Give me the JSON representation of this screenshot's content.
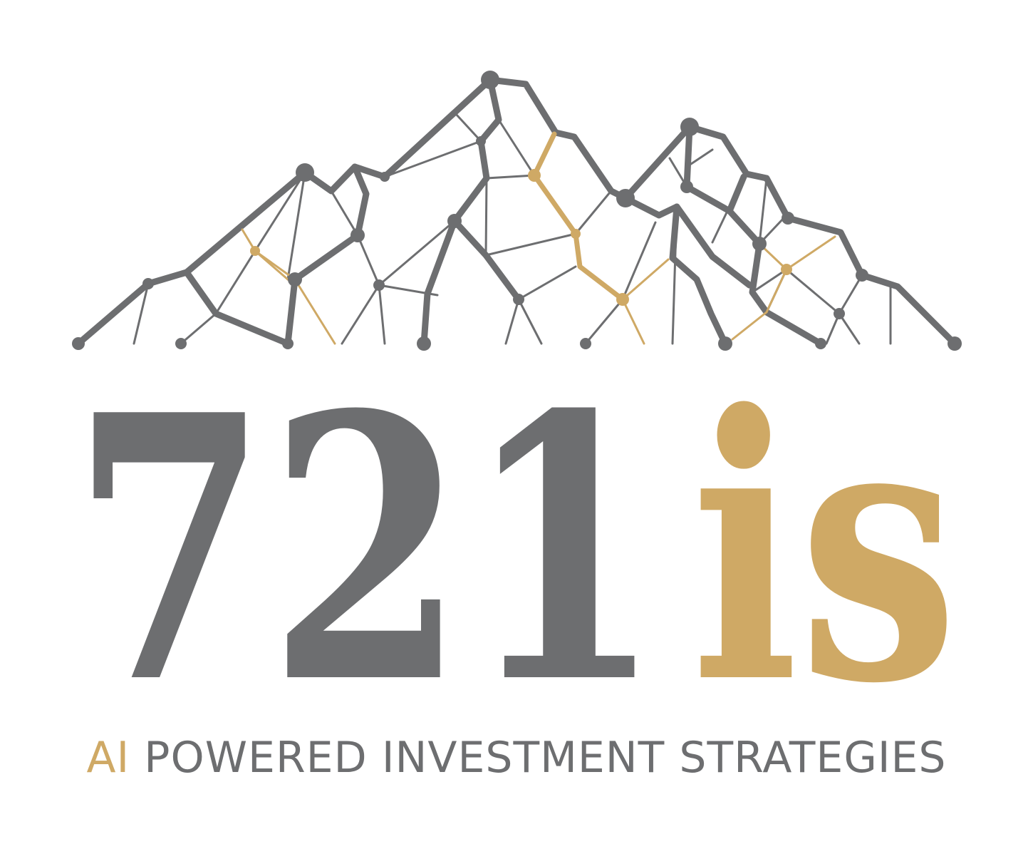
{
  "brand": {
    "wordmark_primary": "721",
    "wordmark_accent": "is",
    "tagline_accent": "AI",
    "tagline_rest": " POWERED INVESTMENT STRATEGIES"
  },
  "colors": {
    "gray": "#6d6e70",
    "gold": "#cfa965",
    "background": "#ffffff"
  },
  "emblem": {
    "icon": "mountain-network-icon"
  }
}
